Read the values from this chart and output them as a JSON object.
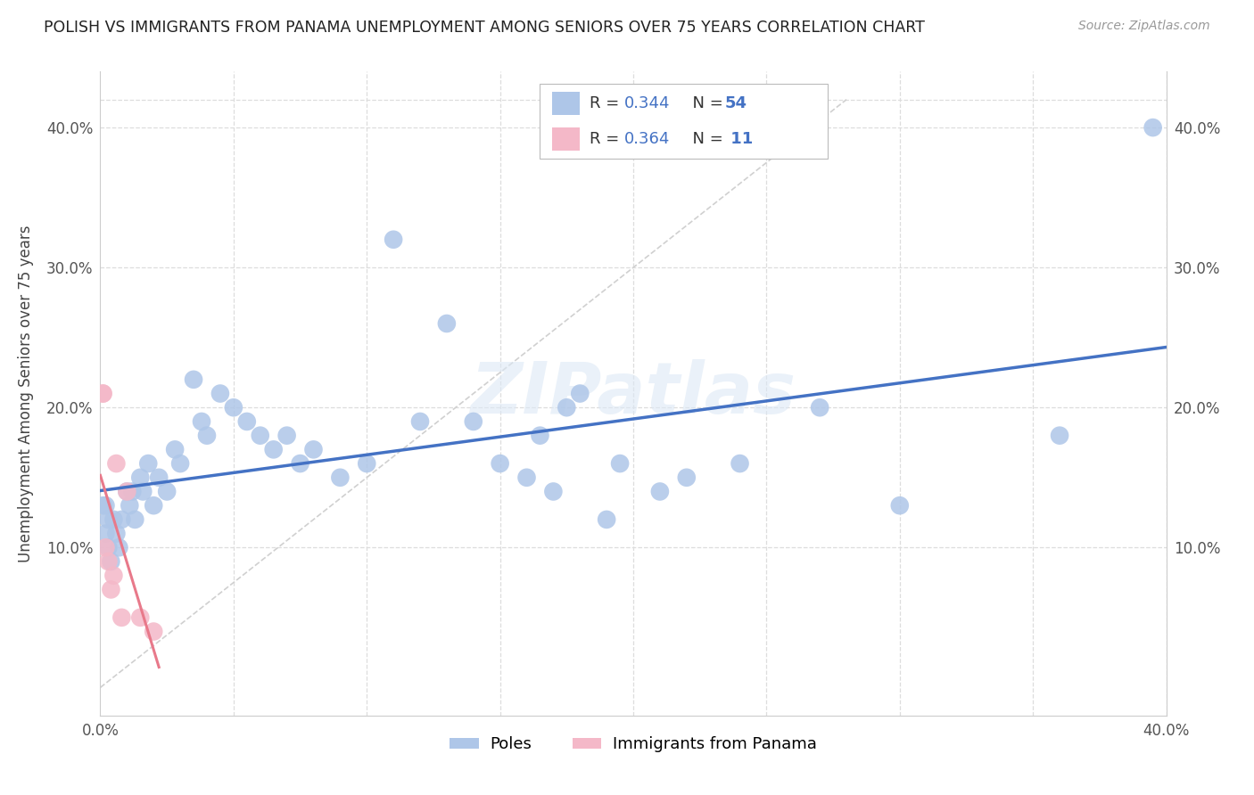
{
  "title": "POLISH VS IMMIGRANTS FROM PANAMA UNEMPLOYMENT AMONG SENIORS OVER 75 YEARS CORRELATION CHART",
  "source": "Source: ZipAtlas.com",
  "ylabel": "Unemployment Among Seniors over 75 years",
  "xlim": [
    0.0,
    0.4
  ],
  "ylim": [
    -0.02,
    0.44
  ],
  "xticks": [
    0.0,
    0.05,
    0.1,
    0.15,
    0.2,
    0.25,
    0.3,
    0.35,
    0.4
  ],
  "yticks": [
    0.0,
    0.1,
    0.2,
    0.3,
    0.4
  ],
  "poles_x": [
    0.001,
    0.002,
    0.002,
    0.003,
    0.003,
    0.004,
    0.005,
    0.006,
    0.007,
    0.008,
    0.01,
    0.011,
    0.012,
    0.013,
    0.015,
    0.016,
    0.018,
    0.02,
    0.022,
    0.025,
    0.028,
    0.03,
    0.035,
    0.038,
    0.04,
    0.045,
    0.05,
    0.055,
    0.06,
    0.065,
    0.07,
    0.075,
    0.08,
    0.09,
    0.1,
    0.11,
    0.12,
    0.13,
    0.14,
    0.15,
    0.16,
    0.165,
    0.17,
    0.175,
    0.18,
    0.19,
    0.195,
    0.21,
    0.22,
    0.24,
    0.27,
    0.3,
    0.36,
    0.395
  ],
  "poles_y": [
    0.13,
    0.11,
    0.13,
    0.1,
    0.12,
    0.09,
    0.12,
    0.11,
    0.1,
    0.12,
    0.14,
    0.13,
    0.14,
    0.12,
    0.15,
    0.14,
    0.16,
    0.13,
    0.15,
    0.14,
    0.17,
    0.16,
    0.22,
    0.19,
    0.18,
    0.21,
    0.2,
    0.19,
    0.18,
    0.17,
    0.18,
    0.16,
    0.17,
    0.15,
    0.16,
    0.32,
    0.19,
    0.26,
    0.19,
    0.16,
    0.15,
    0.18,
    0.14,
    0.2,
    0.21,
    0.12,
    0.16,
    0.14,
    0.15,
    0.16,
    0.2,
    0.13,
    0.18,
    0.4
  ],
  "panama_x": [
    0.001,
    0.001,
    0.002,
    0.003,
    0.004,
    0.005,
    0.006,
    0.008,
    0.01,
    0.015,
    0.02
  ],
  "panama_y": [
    0.21,
    0.21,
    0.1,
    0.09,
    0.07,
    0.08,
    0.16,
    0.05,
    0.14,
    0.05,
    0.04
  ],
  "poles_color": "#aec6e8",
  "panama_color": "#f4b8c8",
  "poles_trendline_color": "#4472c4",
  "panama_trendline_color": "#e8798a",
  "diag_line_color": "#cccccc",
  "R_poles": 0.344,
  "N_poles": 54,
  "R_panama": 0.364,
  "N_panama": 11,
  "legend_label_poles": "Poles",
  "legend_label_panama": "Immigrants from Panama",
  "watermark": "ZIPatlas",
  "background_color": "#ffffff",
  "grid_color": "#dddddd"
}
